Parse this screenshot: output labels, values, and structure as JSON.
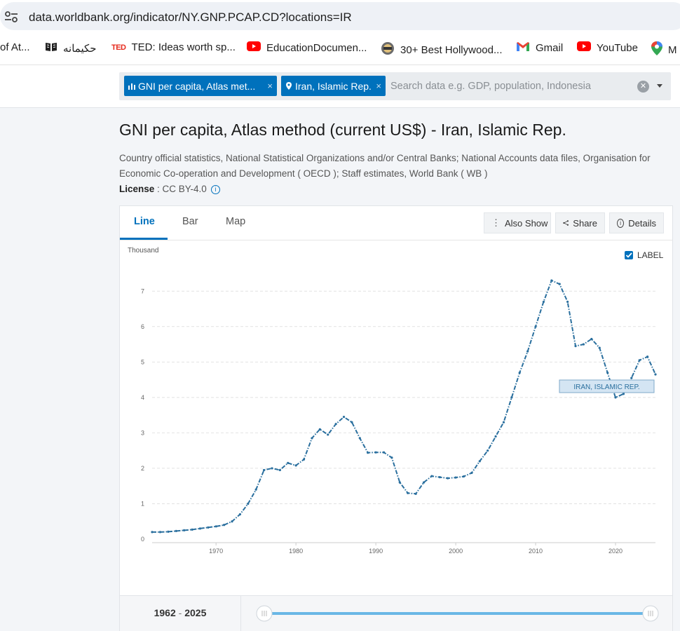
{
  "browser": {
    "url": "data.worldbank.org/indicator/NY.GNP.PCAP.CD?locations=IR",
    "bookmarks": [
      {
        "label": "of At..."
      },
      {
        "label": "حکیمانه"
      },
      {
        "label": "TED: Ideas worth sp..."
      },
      {
        "label": "EducationDocumen..."
      },
      {
        "label": "30+ Best Hollywood..."
      },
      {
        "label": "Gmail"
      },
      {
        "label": "YouTube"
      },
      {
        "label": "M"
      }
    ]
  },
  "search": {
    "chips": [
      {
        "label": "GNI per capita, Atlas met...",
        "close": "×"
      },
      {
        "label": "Iran, Islamic Rep.",
        "close": "×"
      }
    ],
    "placeholder": "Search data e.g. GDP, population, Indonesia"
  },
  "indicator": {
    "title": "GNI per capita, Atlas method (current US$) - Iran, Islamic Rep.",
    "sources": "Country official statistics, National Statistical Organizations and/or Central Banks; National Accounts data files, Organisation for Economic Co-operation and Development ( OECD ); Staff estimates, World Bank ( WB )",
    "license_label": "License",
    "license_value": " : CC BY-4.0"
  },
  "tabs": [
    {
      "label": "Line"
    },
    {
      "label": "Bar"
    },
    {
      "label": "Map"
    }
  ],
  "actions": {
    "also_show": "Also Show",
    "share": "Share",
    "details": "Details"
  },
  "label_toggle": "LABEL",
  "range": {
    "start": "1962",
    "sep": " - ",
    "end": "2025"
  },
  "colors": {
    "accent": "#0071bc",
    "line": "#2a6f9e",
    "slider": "#6ab7e6"
  },
  "chart_data": {
    "type": "line",
    "ylabel": "Thousand",
    "ylim": [
      0,
      7.5
    ],
    "xlim": [
      1962,
      2025
    ],
    "y_ticks": [
      0,
      1,
      2,
      3,
      4,
      5,
      6,
      7
    ],
    "x_ticks": [
      1970,
      1980,
      1990,
      2000,
      2010,
      2020
    ],
    "grid": true,
    "series": [
      {
        "name": "IRAN, ISLAMIC REP.",
        "x": [
          1962,
          1963,
          1964,
          1965,
          1966,
          1967,
          1968,
          1969,
          1970,
          1971,
          1972,
          1973,
          1974,
          1975,
          1976,
          1977,
          1978,
          1979,
          1980,
          1981,
          1982,
          1983,
          1984,
          1985,
          1986,
          1987,
          1988,
          1989,
          1990,
          1991,
          1992,
          1993,
          1994,
          1995,
          1996,
          1997,
          1998,
          1999,
          2000,
          2001,
          2002,
          2003,
          2004,
          2005,
          2006,
          2007,
          2008,
          2009,
          2010,
          2011,
          2012,
          2013,
          2014,
          2015,
          2016,
          2017,
          2018,
          2019,
          2020,
          2021,
          2022,
          2023,
          2024,
          2025
        ],
        "y": [
          0.2,
          0.2,
          0.21,
          0.23,
          0.25,
          0.27,
          0.3,
          0.33,
          0.36,
          0.4,
          0.5,
          0.7,
          1.0,
          1.4,
          1.95,
          2.0,
          1.95,
          2.15,
          2.08,
          2.25,
          2.85,
          3.1,
          2.95,
          3.25,
          3.45,
          3.3,
          2.85,
          2.44,
          2.45,
          2.45,
          2.3,
          1.6,
          1.3,
          1.28,
          1.6,
          1.78,
          1.75,
          1.72,
          1.74,
          1.77,
          1.87,
          2.2,
          2.5,
          2.9,
          3.3,
          4.0,
          4.7,
          5.3,
          6.0,
          6.7,
          7.3,
          7.2,
          6.7,
          5.45,
          5.5,
          5.65,
          5.4,
          4.7,
          4.0,
          4.1,
          4.55,
          5.05,
          5.15,
          4.65
        ]
      }
    ]
  }
}
